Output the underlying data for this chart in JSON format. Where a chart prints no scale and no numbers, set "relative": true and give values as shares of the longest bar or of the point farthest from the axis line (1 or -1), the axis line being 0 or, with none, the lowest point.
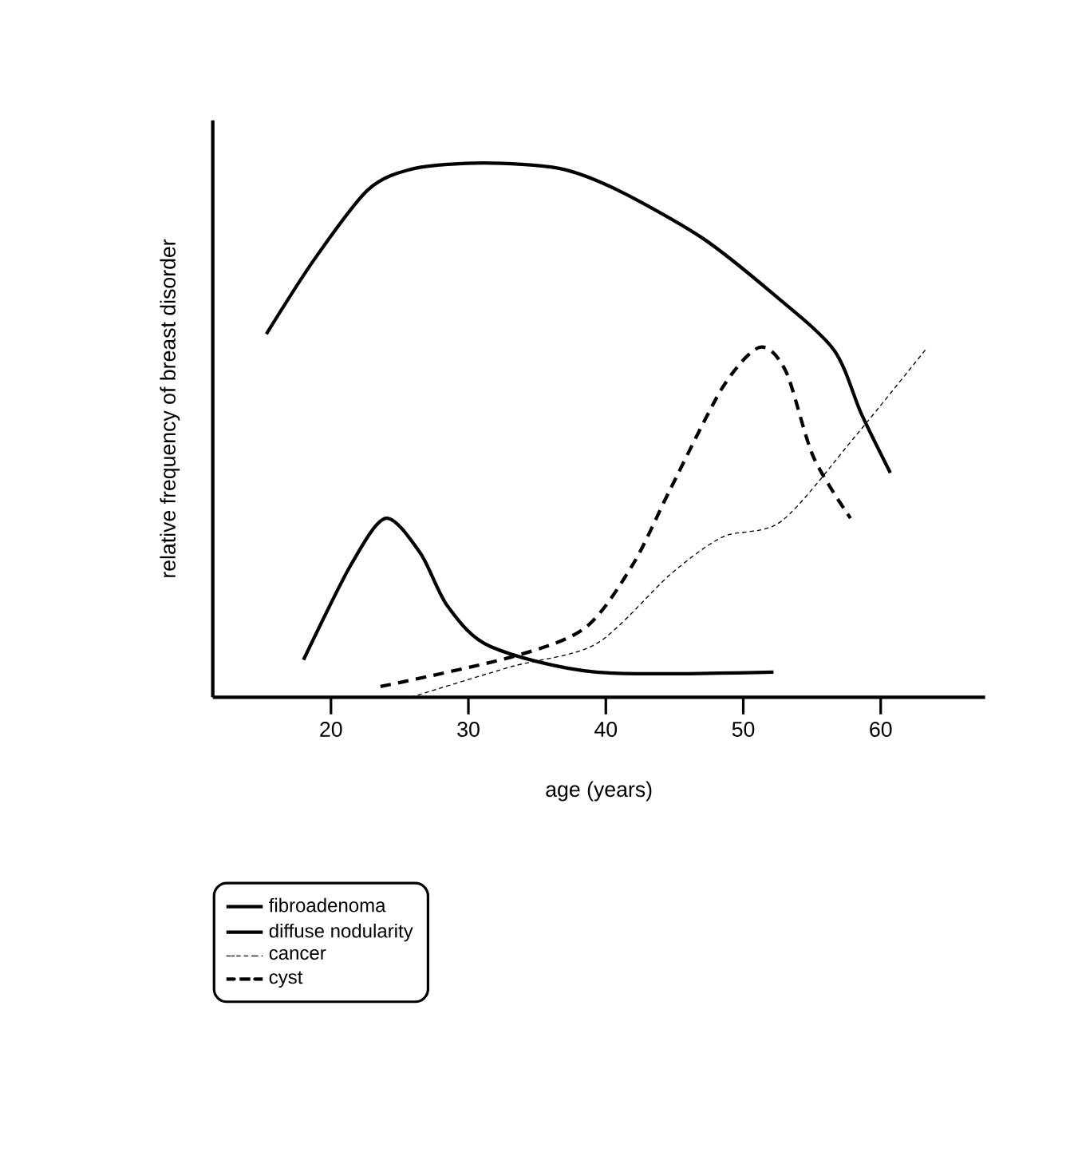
{
  "chart_data": {
    "type": "line",
    "relative": true,
    "xlabel": "age (years)",
    "ylabel": "relative frequency of breast disorder",
    "xlim": [
      11.4,
      67.6
    ],
    "xticks": [
      20,
      30,
      40,
      50,
      60
    ],
    "legend": "bottom",
    "series": [
      {
        "name": "fibroadenoma",
        "color": "#000000",
        "line_style": "solid",
        "x": [
          18.0,
          21.5,
          24.0,
          26.5,
          28.5,
          31.6,
          39.3,
          52.2
        ],
        "values": [
          0.07,
          0.25,
          0.335,
          0.27,
          0.17,
          0.095,
          0.047,
          0.047
        ]
      },
      {
        "name": "diffuse nodularity",
        "color": "#000000",
        "line_style": "solid",
        "x": [
          15.3,
          18.8,
          22.7,
          26.1,
          31.1,
          36.6,
          40.8,
          47.0,
          52.4,
          56.6,
          58.6,
          60.7
        ],
        "values": [
          0.68,
          0.82,
          0.95,
          0.99,
          1.0,
          0.99,
          0.95,
          0.86,
          0.75,
          0.65,
          0.53,
          0.42
        ]
      },
      {
        "name": "cancer",
        "color": "#000000",
        "line_style": "dotted",
        "x": [
          25.8,
          33.1,
          39.3,
          44.7,
          48.5,
          52.8,
          58.2,
          63.4
        ],
        "values": [
          0.0,
          0.057,
          0.1,
          0.23,
          0.3,
          0.33,
          0.49,
          0.655
        ]
      },
      {
        "name": "cyst",
        "color": "#000000",
        "line_style": "dashed",
        "x": [
          23.6,
          33.1,
          38.5,
          42.0,
          44.7,
          48.5,
          51.2,
          53.1,
          55.1,
          57.8
        ],
        "values": [
          0.02,
          0.075,
          0.13,
          0.25,
          0.39,
          0.58,
          0.655,
          0.61,
          0.45,
          0.335
        ]
      }
    ]
  }
}
